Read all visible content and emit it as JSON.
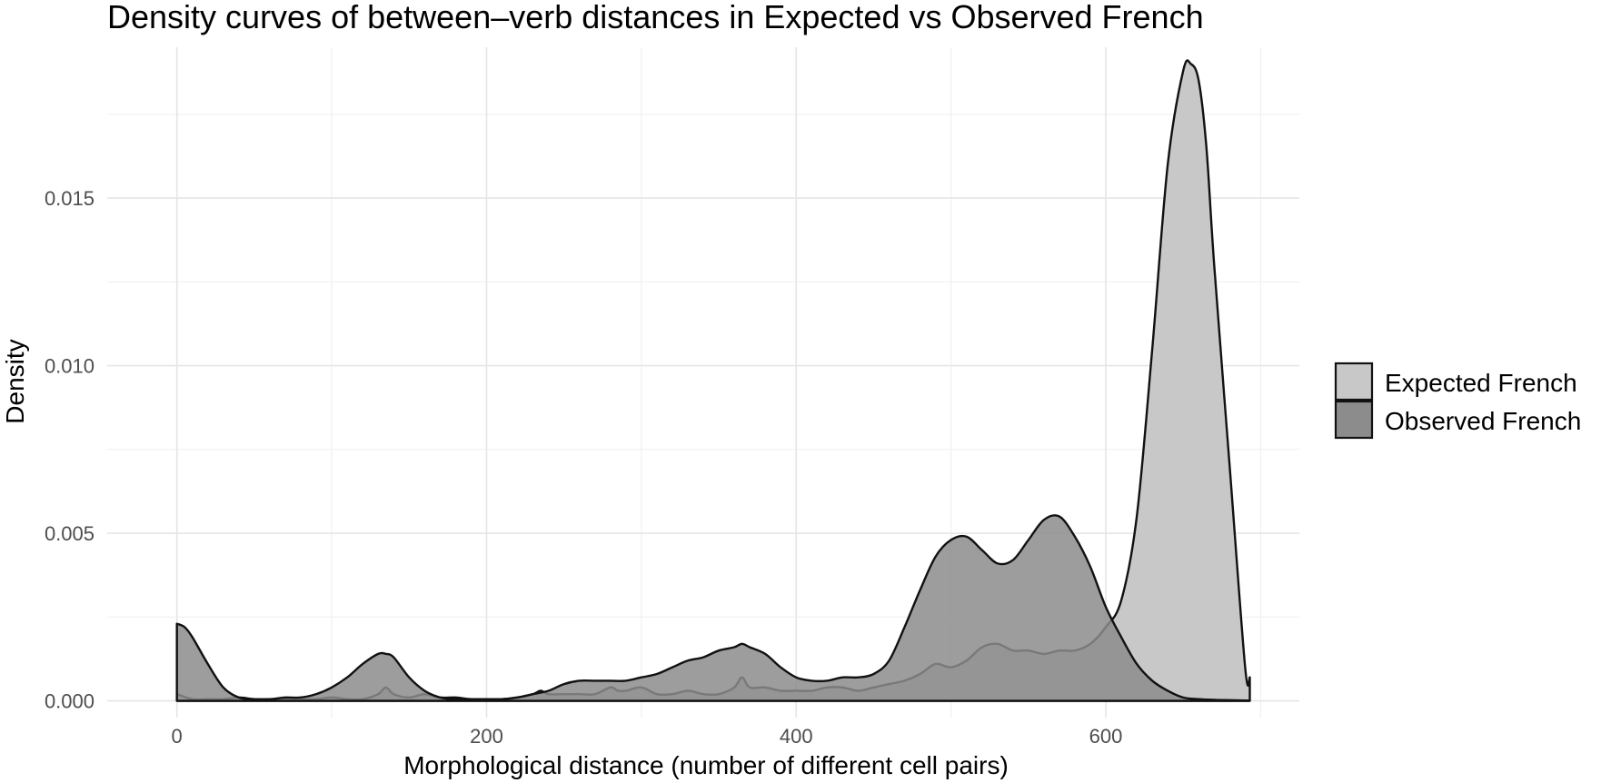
{
  "chart_data": {
    "type": "area",
    "title": "Density curves of between–verb distances in Expected vs Observed French",
    "xlabel": "Morphological distance (number of different cell pairs)",
    "ylabel": "Density",
    "xlim": [
      -45,
      725
    ],
    "ylim": [
      -0.0005,
      0.0195
    ],
    "x_ticks": [
      0,
      200,
      400,
      600
    ],
    "x_tick_labels": [
      "0",
      "200",
      "400",
      "600"
    ],
    "y_ticks": [
      0.0,
      0.005,
      0.01,
      0.015
    ],
    "y_tick_labels": [
      "0.000",
      "0.005",
      "0.010",
      "0.015"
    ],
    "grid": true,
    "legend_position": "right",
    "series": [
      {
        "name": "Expected French",
        "color": "#c8c8c8",
        "x": [
          0,
          10,
          20,
          30,
          40,
          50,
          60,
          70,
          80,
          90,
          100,
          110,
          120,
          130,
          135,
          140,
          150,
          160,
          170,
          180,
          190,
          200,
          210,
          220,
          230,
          235,
          240,
          250,
          260,
          270,
          280,
          285,
          290,
          300,
          310,
          320,
          330,
          340,
          350,
          360,
          365,
          370,
          380,
          390,
          400,
          410,
          420,
          430,
          440,
          450,
          460,
          470,
          480,
          490,
          500,
          510,
          520,
          530,
          540,
          550,
          560,
          570,
          580,
          590,
          600,
          610,
          620,
          630,
          640,
          650,
          655,
          660,
          665,
          670,
          680,
          690,
          693
        ],
        "values": [
          0.0002,
          5e-05,
          5e-05,
          5e-05,
          0.0001,
          5e-05,
          5e-05,
          5e-05,
          5e-05,
          5e-05,
          0.0001,
          5e-05,
          5e-05,
          0.0002,
          0.0004,
          0.0002,
          0.0001,
          0.0002,
          0.0001,
          0.0001,
          5e-05,
          5e-05,
          5e-05,
          0.0001,
          0.0002,
          0.0003,
          0.0002,
          0.0002,
          0.0002,
          0.0002,
          0.0004,
          0.0003,
          0.0003,
          0.0004,
          0.0002,
          0.0002,
          0.0003,
          0.0002,
          0.0002,
          0.0004,
          0.0007,
          0.0004,
          0.0004,
          0.0003,
          0.0003,
          0.0003,
          0.0004,
          0.0004,
          0.0003,
          0.0004,
          0.0005,
          0.0006,
          0.0008,
          0.0011,
          0.001,
          0.0012,
          0.0016,
          0.0017,
          0.0015,
          0.0015,
          0.0014,
          0.0015,
          0.0015,
          0.0017,
          0.0022,
          0.003,
          0.0055,
          0.0105,
          0.016,
          0.0188,
          0.019,
          0.0185,
          0.0165,
          0.013,
          0.007,
          0.001,
          0.0007
        ]
      },
      {
        "name": "Observed French",
        "color": "#8c8c8c",
        "x": [
          0,
          5,
          10,
          20,
          30,
          40,
          50,
          60,
          70,
          80,
          90,
          100,
          110,
          120,
          130,
          135,
          140,
          150,
          160,
          170,
          180,
          190,
          200,
          210,
          220,
          230,
          240,
          250,
          260,
          270,
          280,
          290,
          300,
          310,
          320,
          330,
          340,
          350,
          360,
          365,
          370,
          380,
          390,
          400,
          410,
          420,
          430,
          440,
          450,
          460,
          470,
          480,
          490,
          500,
          510,
          520,
          530,
          540,
          550,
          560,
          570,
          580,
          590,
          600,
          610,
          620,
          630,
          640,
          650,
          660,
          670,
          680,
          690,
          693
        ],
        "values": [
          0.0023,
          0.0022,
          0.0019,
          0.0011,
          0.0004,
          0.0001,
          5e-05,
          5e-05,
          0.0001,
          0.0001,
          0.0002,
          0.0004,
          0.0007,
          0.0011,
          0.0014,
          0.0014,
          0.0013,
          0.0007,
          0.0003,
          0.0001,
          5e-05,
          5e-05,
          5e-05,
          5e-05,
          0.0001,
          0.0002,
          0.0003,
          0.0005,
          0.0006,
          0.0006,
          0.0006,
          0.0006,
          0.0007,
          0.0008,
          0.001,
          0.0012,
          0.0013,
          0.0015,
          0.0016,
          0.0017,
          0.0016,
          0.0014,
          0.001,
          0.0007,
          0.0006,
          0.0006,
          0.0007,
          0.0007,
          0.0008,
          0.0012,
          0.0022,
          0.0033,
          0.0043,
          0.0048,
          0.0049,
          0.0045,
          0.0041,
          0.0042,
          0.0048,
          0.0054,
          0.0055,
          0.0049,
          0.004,
          0.0028,
          0.0019,
          0.0011,
          0.0006,
          0.0003,
          0.0001,
          5e-05,
          3e-05,
          2e-05,
          1e-05,
          1e-05
        ]
      }
    ]
  }
}
